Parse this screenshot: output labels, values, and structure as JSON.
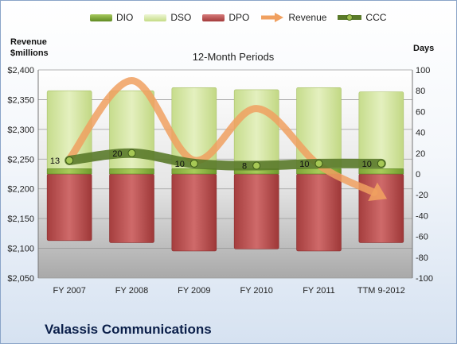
{
  "legend": {
    "dio": "DIO",
    "dso": "DSO",
    "dpo": "DPO",
    "revenue": "Revenue",
    "ccc": "CCC"
  },
  "colors": {
    "dio": "#6f9a2c",
    "dso": "#d8e8a8",
    "dpo": "#b84a4a",
    "revenue": "#f0a060",
    "ccc": "#5a7a2a"
  },
  "axis_left_title_1": "Revenue",
  "axis_left_title_2": "$millions",
  "axis_right_title": "Days",
  "subtitle": "12-Month Periods",
  "company": "Valassis Communications",
  "chart_data": {
    "type": "bar",
    "title": "12-Month Periods",
    "categories": [
      "FY 2007",
      "FY 2008",
      "FY 2009",
      "FY 2010",
      "FY 2011",
      "TTM 9-2012"
    ],
    "y_left": {
      "label": "Revenue $millions",
      "range": [
        2050,
        2400
      ],
      "step": 50,
      "ticks": [
        "$2,050",
        "$2,100",
        "$2,150",
        "$2,200",
        "$2,250",
        "$2,300",
        "$2,350",
        "$2,400"
      ]
    },
    "y_right": {
      "label": "Days",
      "range": [
        -100,
        100
      ],
      "step": 20,
      "ticks": [
        "-100",
        "-80",
        "-60",
        "-40",
        "-20",
        "0",
        "20",
        "40",
        "60",
        "80",
        "100"
      ]
    },
    "series": [
      {
        "name": "DIO",
        "axis": "right",
        "values": [
          5,
          5,
          5,
          5,
          5,
          5
        ]
      },
      {
        "name": "DSO",
        "axis": "right",
        "values": [
          75,
          75,
          78,
          76,
          78,
          74
        ]
      },
      {
        "name": "DPO",
        "axis": "right",
        "values": [
          -64,
          -66,
          -74,
          -72,
          -74,
          -66
        ]
      },
      {
        "name": "Revenue",
        "axis": "left",
        "values": [
          2250,
          2382,
          2248,
          2335,
          2240,
          2188
        ]
      },
      {
        "name": "CCC",
        "axis": "right",
        "values": [
          13,
          20,
          10,
          8,
          10,
          10
        ]
      }
    ],
    "data_labels": {
      "CCC": [
        "13",
        "20",
        "10",
        "8",
        "10",
        "10"
      ]
    },
    "grid": true,
    "legend_position": "top"
  }
}
